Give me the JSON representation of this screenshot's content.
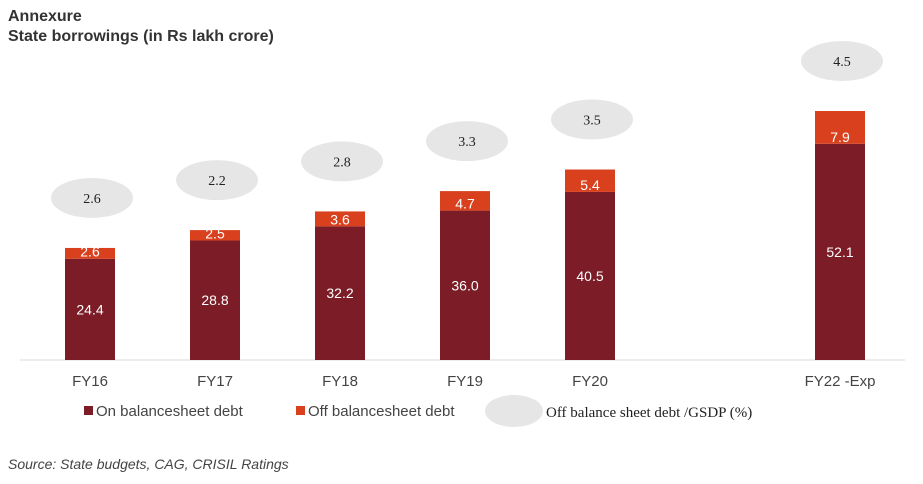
{
  "chart_data": {
    "type": "bar",
    "stacked": true,
    "title": "Annexure",
    "subtitle": "State borrowings (in Rs lakh crore)",
    "categories": [
      "FY16",
      "FY17",
      "FY18",
      "FY19",
      "FY20",
      "FY22 -Exp"
    ],
    "series": [
      {
        "name": "On balancesheet debt",
        "color": "#7B1C27",
        "values": [
          24.4,
          28.8,
          32.2,
          36.0,
          40.5,
          52.1
        ]
      },
      {
        "name": "Off balancesheet debt",
        "color": "#D9411E",
        "values": [
          2.6,
          2.5,
          3.6,
          4.7,
          5.4,
          7.9
        ]
      }
    ],
    "ratio": {
      "name": "Off balance sheet debt /GSDP (%)",
      "color": "#E6E6E6",
      "values": [
        2.6,
        2.2,
        2.8,
        3.3,
        3.5,
        4.5
      ]
    },
    "ylim": [
      0,
      62
    ],
    "grid": false,
    "legend": "bottom",
    "source": "Source: State budgets, CAG, CRISIL Ratings"
  }
}
